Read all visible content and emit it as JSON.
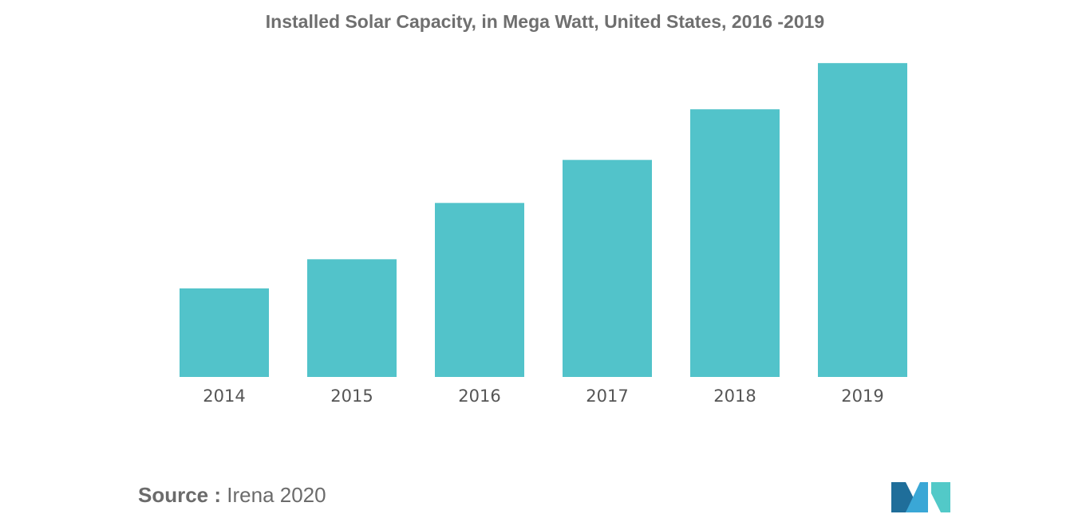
{
  "chart_data": {
    "type": "bar",
    "title": "Installed Solar Capacity, in Mega Watt, United States, 2016 -2019",
    "categories": [
      "2014",
      "2015",
      "2016",
      "2017",
      "2018",
      "2019"
    ],
    "values": [
      14,
      18.6,
      27.5,
      34.3,
      42.3,
      49.6
    ],
    "xlabel": "",
    "ylabel": "",
    "ylim": [
      0,
      50
    ],
    "grid": false,
    "legend": "none",
    "bar_color": "#52c3ca"
  },
  "source": {
    "label": "Source :",
    "text": "Irena 2020"
  },
  "logo": {
    "colors": [
      "#1f6e9a",
      "#3aa7d6",
      "#52c9c8"
    ]
  }
}
